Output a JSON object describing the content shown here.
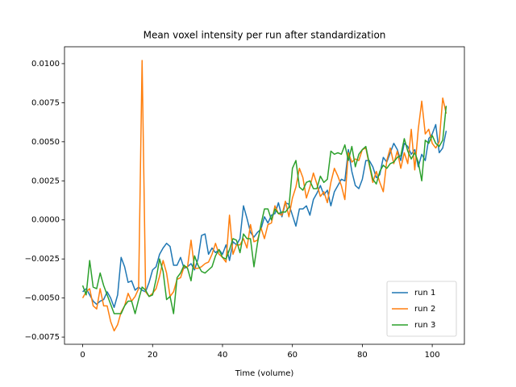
{
  "chart_data": {
    "type": "line",
    "title": "Mean voxel intensity per run after standardization",
    "xlabel": "Time (volume)",
    "x": [
      0,
      1,
      2,
      3,
      4,
      5,
      6,
      7,
      8,
      9,
      10,
      11,
      12,
      13,
      14,
      15,
      16,
      17,
      18,
      19,
      20,
      21,
      22,
      23,
      24,
      25,
      26,
      27,
      28,
      29,
      30,
      31,
      32,
      33,
      34,
      35,
      36,
      37,
      38,
      39,
      40,
      41,
      42,
      43,
      44,
      45,
      46,
      47,
      48,
      49,
      50,
      51,
      52,
      53,
      54,
      55,
      56,
      57,
      58,
      59,
      60,
      61,
      62,
      63,
      64,
      65,
      66,
      67,
      68,
      69,
      70,
      71,
      72,
      73,
      74,
      75,
      76,
      77,
      78,
      79,
      80,
      81,
      82,
      83,
      84,
      85,
      86,
      87,
      88,
      89,
      90,
      91,
      92,
      93,
      94,
      95,
      96,
      97,
      98,
      99,
      100,
      101,
      102,
      103,
      104
    ],
    "series": [
      {
        "name": "run 1",
        "color": "#1f77b4",
        "values": [
          -0.0046,
          -0.0044,
          -0.0048,
          -0.0052,
          -0.0054,
          -0.0052,
          -0.0051,
          -0.0046,
          -0.005,
          -0.0056,
          -0.0048,
          -0.0024,
          -0.003,
          -0.004,
          -0.0039,
          -0.0045,
          -0.0043,
          -0.0045,
          -0.0046,
          -0.004,
          -0.0032,
          -0.003,
          -0.0022,
          -0.0018,
          -0.0015,
          -0.0017,
          -0.0029,
          -0.0029,
          -0.0024,
          -0.0031,
          -0.003,
          -0.0028,
          -0.0032,
          -0.0025,
          -0.001,
          -0.0009,
          -0.0022,
          -0.0018,
          -0.0021,
          -0.0019,
          -0.0022,
          -0.0016,
          -0.0026,
          -0.0014,
          -0.0016,
          -0.0012,
          0.0009,
          0.0001,
          -0.0008,
          -0.0011,
          -0.0008,
          -0.0006,
          0.0002,
          -0.0002,
          0.0003,
          0.0004,
          0.0011,
          0.0002,
          0.0011,
          0.001,
          0.0003,
          -0.0004,
          0.0007,
          0.0007,
          0.0009,
          0.0003,
          0.0013,
          0.0017,
          0.0022,
          0.0016,
          0.0019,
          0.0009,
          0.0018,
          0.0022,
          0.0026,
          0.0025,
          0.0045,
          0.0031,
          0.0022,
          0.002,
          0.0026,
          0.0038,
          0.0038,
          0.0034,
          0.0027,
          0.0029,
          0.004,
          0.0037,
          0.0043,
          0.0049,
          0.0045,
          0.0038,
          0.0049,
          0.0047,
          0.0042,
          0.0045,
          0.0034,
          0.0042,
          0.0038,
          0.0052,
          0.0055,
          0.0061,
          0.0043,
          0.0046,
          0.0057
        ]
      },
      {
        "name": "run 2",
        "color": "#ff7f0e",
        "values": [
          -0.005,
          -0.0046,
          -0.0044,
          -0.0055,
          -0.0057,
          -0.0044,
          -0.0055,
          -0.0055,
          -0.0065,
          -0.0071,
          -0.0067,
          -0.0059,
          -0.0055,
          -0.0047,
          -0.0052,
          -0.0049,
          -0.0044,
          0.0102,
          -0.0046,
          -0.0049,
          -0.0047,
          -0.0044,
          -0.0036,
          -0.0026,
          -0.0034,
          -0.0049,
          -0.0046,
          -0.0038,
          -0.0037,
          -0.003,
          -0.003,
          -0.0013,
          -0.0031,
          -0.0031,
          -0.003,
          -0.0028,
          -0.0027,
          -0.0022,
          -0.0015,
          -0.0022,
          -0.0024,
          -0.0027,
          0.0003,
          -0.0022,
          -0.0016,
          -0.0016,
          -0.0012,
          -0.0018,
          -0.0003,
          -0.0014,
          -0.0013,
          -0.0005,
          -0.0012,
          -0.0003,
          -0.0002,
          0.0009,
          0.0004,
          0.0003,
          0.0012,
          0.0002,
          0.0014,
          0.0021,
          0.0033,
          0.0027,
          0.0014,
          0.0021,
          0.003,
          0.0023,
          0.0015,
          0.0018,
          0.0011,
          0.0024,
          0.0033,
          0.0028,
          0.0022,
          0.0013,
          0.0043,
          0.0037,
          0.0039,
          0.0038,
          0.0045,
          0.0046,
          0.0035,
          0.0024,
          0.0031,
          0.0024,
          0.0018,
          0.0038,
          0.0046,
          0.0036,
          0.0044,
          0.0033,
          0.0043,
          0.0036,
          0.0058,
          0.0032,
          0.0058,
          0.0076,
          0.0055,
          0.0058,
          0.0049,
          0.0046,
          0.005,
          0.0078,
          0.0068
        ]
      },
      {
        "name": "run 3",
        "color": "#2ca02c",
        "values": [
          -0.0042,
          -0.0048,
          -0.0026,
          -0.0043,
          -0.0044,
          -0.0034,
          -0.0042,
          -0.0048,
          -0.0054,
          -0.006,
          -0.006,
          -0.006,
          -0.0055,
          -0.0052,
          -0.0052,
          -0.006,
          -0.0051,
          -0.0043,
          -0.0045,
          -0.0049,
          -0.0048,
          -0.0038,
          -0.0025,
          -0.0033,
          -0.0051,
          -0.0049,
          -0.006,
          -0.0037,
          -0.0034,
          -0.0029,
          -0.0031,
          -0.0039,
          -0.0023,
          -0.0029,
          -0.0033,
          -0.0034,
          -0.0032,
          -0.003,
          -0.0023,
          -0.0019,
          -0.0024,
          -0.0025,
          -0.0019,
          -0.0012,
          -0.0013,
          -0.0021,
          -0.0009,
          -0.0012,
          -0.0012,
          -0.003,
          -0.0015,
          -0.0003,
          0.0007,
          0.0007,
          0.0,
          0.0007,
          0.0004,
          0.0005,
          0.0005,
          0.0008,
          0.0033,
          0.0038,
          0.0021,
          0.0019,
          0.0024,
          0.0025,
          0.002,
          0.002,
          0.0028,
          0.0024,
          0.0026,
          0.0044,
          0.0042,
          0.0043,
          0.0042,
          0.0048,
          0.0038,
          0.0047,
          0.0034,
          0.0042,
          0.0045,
          0.0047,
          0.0036,
          0.0026,
          0.0023,
          0.0031,
          0.0035,
          0.0033,
          0.0036,
          0.0037,
          0.004,
          0.0041,
          0.0052,
          0.0044,
          0.0039,
          0.0043,
          0.0037,
          0.0025,
          0.0051,
          0.0049,
          0.0054,
          0.0049,
          0.0047,
          0.0051,
          0.0073
        ]
      }
    ],
    "xlim": [
      -5.2,
      109.2
    ],
    "ylim": [
      -0.00796,
      0.01108
    ],
    "xticks": [
      0,
      20,
      40,
      60,
      80,
      100
    ],
    "yticks": [
      {
        "value": -0.0075,
        "label": "−0.0075"
      },
      {
        "value": -0.005,
        "label": "−0.0050"
      },
      {
        "value": -0.0025,
        "label": "−0.0025"
      },
      {
        "value": 0,
        "label": "0.0000"
      },
      {
        "value": 0.0025,
        "label": "0.0025"
      },
      {
        "value": 0.005,
        "label": "0.0050"
      },
      {
        "value": 0.0075,
        "label": "0.0075"
      },
      {
        "value": 0.01,
        "label": "0.0100"
      }
    ],
    "legend": "lower right"
  }
}
